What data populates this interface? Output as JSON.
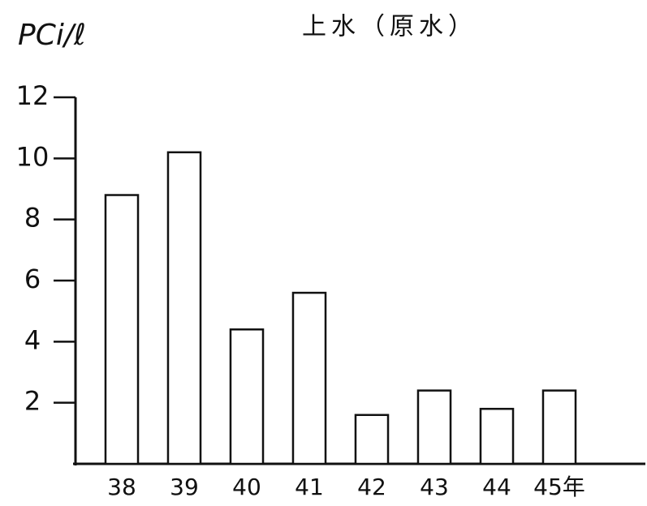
{
  "chart_data": {
    "type": "bar",
    "title": "上水（原水）",
    "y_label": "PCi/ℓ",
    "categories": [
      "38",
      "39",
      "40",
      "41",
      "42",
      "43",
      "44",
      "45年"
    ],
    "values": [
      8.8,
      10.2,
      4.4,
      5.6,
      1.6,
      2.4,
      1.8,
      2.4
    ],
    "color": "#ffffff",
    "ylim": [
      0,
      12
    ],
    "yticks": [
      2,
      4,
      6,
      8,
      10,
      12
    ],
    "grid": false
  }
}
